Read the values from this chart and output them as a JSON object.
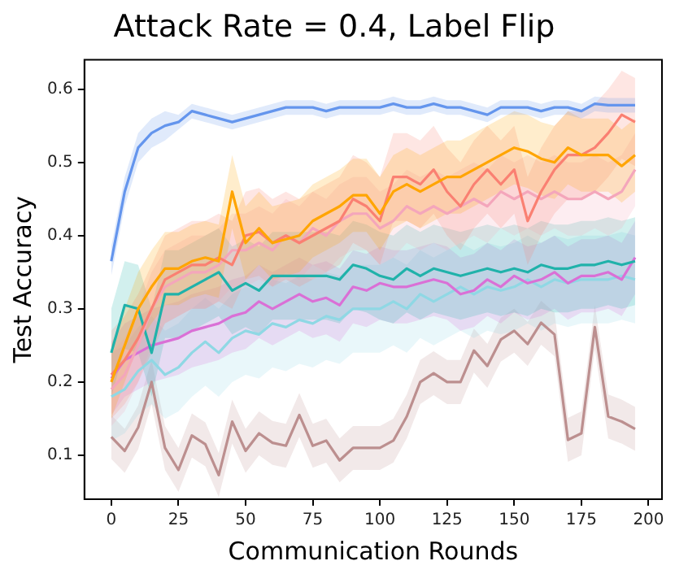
{
  "chart_data": {
    "type": "line",
    "title": "Attack Rate = 0.4, Label Flip",
    "xlabel": "Communication Rounds",
    "ylabel": "Test Accuracy",
    "x": [
      0,
      5,
      10,
      15,
      20,
      25,
      30,
      35,
      40,
      45,
      50,
      55,
      60,
      65,
      70,
      75,
      80,
      85,
      90,
      95,
      100,
      105,
      110,
      115,
      120,
      125,
      130,
      135,
      140,
      145,
      150,
      155,
      160,
      165,
      170,
      175,
      180,
      185,
      190,
      195
    ],
    "xlim": [
      -10,
      205
    ],
    "xticks": [
      0,
      25,
      50,
      75,
      100,
      125,
      150,
      175,
      200
    ],
    "ylim": [
      0.04,
      0.64
    ],
    "yticks": [
      0.1,
      0.2,
      0.3,
      0.4,
      0.5,
      0.6
    ],
    "grid": false,
    "legend": false,
    "marker": "none",
    "line_style": "solid",
    "series": [
      {
        "color": "#6495ed",
        "values": [
          0.365,
          0.46,
          0.52,
          0.54,
          0.55,
          0.555,
          0.57,
          0.565,
          0.56,
          0.555,
          0.56,
          0.565,
          0.57,
          0.575,
          0.575,
          0.575,
          0.57,
          0.575,
          0.575,
          0.575,
          0.575,
          0.58,
          0.575,
          0.575,
          0.58,
          0.575,
          0.575,
          0.57,
          0.565,
          0.575,
          0.575,
          0.575,
          0.57,
          0.575,
          0.575,
          0.57,
          0.58,
          0.578,
          0.578,
          0.578
        ],
        "lower": [
          0.345,
          0.44,
          0.5,
          0.52,
          0.53,
          0.545,
          0.56,
          0.555,
          0.55,
          0.545,
          0.55,
          0.555,
          0.56,
          0.565,
          0.565,
          0.565,
          0.56,
          0.565,
          0.565,
          0.565,
          0.565,
          0.57,
          0.565,
          0.565,
          0.57,
          0.565,
          0.565,
          0.56,
          0.555,
          0.565,
          0.565,
          0.565,
          0.56,
          0.565,
          0.565,
          0.56,
          0.57,
          0.568,
          0.568,
          0.568
        ],
        "upper": [
          0.385,
          0.48,
          0.54,
          0.56,
          0.57,
          0.565,
          0.58,
          0.575,
          0.57,
          0.565,
          0.57,
          0.575,
          0.58,
          0.585,
          0.585,
          0.585,
          0.58,
          0.585,
          0.585,
          0.585,
          0.585,
          0.59,
          0.585,
          0.585,
          0.59,
          0.585,
          0.585,
          0.58,
          0.575,
          0.585,
          0.585,
          0.585,
          0.58,
          0.585,
          0.585,
          0.58,
          0.59,
          0.588,
          0.588,
          0.588
        ]
      },
      {
        "color": "#ffa500",
        "values": [
          0.2,
          0.25,
          0.3,
          0.33,
          0.355,
          0.355,
          0.365,
          0.37,
          0.365,
          0.46,
          0.39,
          0.41,
          0.39,
          0.395,
          0.4,
          0.42,
          0.43,
          0.44,
          0.455,
          0.455,
          0.43,
          0.46,
          0.47,
          0.46,
          0.47,
          0.48,
          0.48,
          0.49,
          0.5,
          0.51,
          0.52,
          0.515,
          0.505,
          0.5,
          0.52,
          0.51,
          0.51,
          0.51,
          0.495,
          0.51
        ],
        "lower": [
          0.15,
          0.2,
          0.25,
          0.28,
          0.305,
          0.305,
          0.315,
          0.32,
          0.315,
          0.41,
          0.34,
          0.36,
          0.34,
          0.345,
          0.35,
          0.37,
          0.38,
          0.39,
          0.405,
          0.405,
          0.38,
          0.41,
          0.42,
          0.41,
          0.42,
          0.43,
          0.43,
          0.44,
          0.45,
          0.46,
          0.47,
          0.465,
          0.455,
          0.45,
          0.47,
          0.46,
          0.46,
          0.46,
          0.445,
          0.46
        ],
        "upper": [
          0.25,
          0.3,
          0.35,
          0.38,
          0.405,
          0.405,
          0.415,
          0.42,
          0.415,
          0.51,
          0.44,
          0.46,
          0.44,
          0.445,
          0.45,
          0.47,
          0.48,
          0.49,
          0.505,
          0.505,
          0.48,
          0.51,
          0.52,
          0.51,
          0.52,
          0.53,
          0.53,
          0.54,
          0.55,
          0.56,
          0.57,
          0.565,
          0.555,
          0.55,
          0.57,
          0.56,
          0.56,
          0.56,
          0.545,
          0.56
        ]
      },
      {
        "color": "#fa8072",
        "values": [
          0.21,
          0.23,
          0.26,
          0.3,
          0.34,
          0.35,
          0.36,
          0.36,
          0.37,
          0.36,
          0.4,
          0.405,
          0.39,
          0.4,
          0.39,
          0.4,
          0.41,
          0.42,
          0.45,
          0.44,
          0.42,
          0.48,
          0.48,
          0.47,
          0.49,
          0.46,
          0.44,
          0.47,
          0.49,
          0.47,
          0.49,
          0.42,
          0.46,
          0.49,
          0.51,
          0.51,
          0.52,
          0.54,
          0.565,
          0.555
        ],
        "lower": [
          0.15,
          0.17,
          0.2,
          0.24,
          0.28,
          0.29,
          0.3,
          0.3,
          0.31,
          0.3,
          0.34,
          0.345,
          0.33,
          0.34,
          0.33,
          0.34,
          0.35,
          0.36,
          0.39,
          0.38,
          0.36,
          0.42,
          0.42,
          0.41,
          0.43,
          0.4,
          0.38,
          0.41,
          0.43,
          0.41,
          0.43,
          0.36,
          0.4,
          0.43,
          0.45,
          0.45,
          0.46,
          0.48,
          0.505,
          0.495
        ],
        "upper": [
          0.27,
          0.29,
          0.32,
          0.36,
          0.4,
          0.41,
          0.42,
          0.42,
          0.43,
          0.42,
          0.46,
          0.465,
          0.45,
          0.46,
          0.45,
          0.46,
          0.47,
          0.48,
          0.51,
          0.5,
          0.48,
          0.54,
          0.54,
          0.53,
          0.55,
          0.52,
          0.5,
          0.53,
          0.55,
          0.53,
          0.55,
          0.48,
          0.52,
          0.55,
          0.57,
          0.57,
          0.58,
          0.6,
          0.625,
          0.615
        ]
      },
      {
        "color": "#f4a6bb",
        "values": [
          0.19,
          0.21,
          0.25,
          0.3,
          0.33,
          0.34,
          0.35,
          0.35,
          0.36,
          0.38,
          0.38,
          0.39,
          0.38,
          0.4,
          0.39,
          0.41,
          0.4,
          0.42,
          0.43,
          0.43,
          0.41,
          0.42,
          0.44,
          0.43,
          0.44,
          0.43,
          0.44,
          0.45,
          0.44,
          0.46,
          0.45,
          0.46,
          0.45,
          0.46,
          0.45,
          0.45,
          0.46,
          0.45,
          0.46,
          0.49
        ],
        "lower": [
          0.14,
          0.16,
          0.2,
          0.25,
          0.28,
          0.29,
          0.3,
          0.3,
          0.31,
          0.33,
          0.33,
          0.34,
          0.33,
          0.35,
          0.34,
          0.36,
          0.35,
          0.37,
          0.38,
          0.38,
          0.36,
          0.37,
          0.39,
          0.38,
          0.39,
          0.38,
          0.39,
          0.4,
          0.39,
          0.41,
          0.4,
          0.41,
          0.4,
          0.41,
          0.4,
          0.4,
          0.41,
          0.4,
          0.41,
          0.44
        ],
        "upper": [
          0.24,
          0.26,
          0.3,
          0.35,
          0.38,
          0.39,
          0.4,
          0.4,
          0.41,
          0.43,
          0.43,
          0.44,
          0.43,
          0.45,
          0.44,
          0.46,
          0.45,
          0.47,
          0.48,
          0.48,
          0.46,
          0.47,
          0.49,
          0.48,
          0.49,
          0.48,
          0.49,
          0.5,
          0.49,
          0.51,
          0.5,
          0.51,
          0.5,
          0.51,
          0.5,
          0.5,
          0.51,
          0.5,
          0.51,
          0.54
        ]
      },
      {
        "color": "#20b2aa",
        "values": [
          0.24,
          0.305,
          0.3,
          0.24,
          0.32,
          0.32,
          0.33,
          0.34,
          0.35,
          0.325,
          0.335,
          0.325,
          0.345,
          0.345,
          0.345,
          0.345,
          0.345,
          0.34,
          0.36,
          0.355,
          0.345,
          0.34,
          0.355,
          0.345,
          0.355,
          0.35,
          0.345,
          0.35,
          0.355,
          0.35,
          0.355,
          0.35,
          0.36,
          0.355,
          0.355,
          0.36,
          0.36,
          0.365,
          0.36,
          0.365
        ],
        "lower": [
          0.18,
          0.245,
          0.24,
          0.18,
          0.26,
          0.26,
          0.27,
          0.28,
          0.29,
          0.265,
          0.275,
          0.265,
          0.285,
          0.285,
          0.285,
          0.285,
          0.285,
          0.28,
          0.3,
          0.295,
          0.285,
          0.28,
          0.295,
          0.285,
          0.295,
          0.29,
          0.285,
          0.29,
          0.295,
          0.29,
          0.295,
          0.29,
          0.3,
          0.295,
          0.295,
          0.3,
          0.3,
          0.305,
          0.3,
          0.305
        ],
        "upper": [
          0.3,
          0.365,
          0.36,
          0.3,
          0.38,
          0.38,
          0.39,
          0.4,
          0.41,
          0.385,
          0.395,
          0.385,
          0.405,
          0.405,
          0.405,
          0.405,
          0.405,
          0.4,
          0.42,
          0.415,
          0.405,
          0.4,
          0.415,
          0.405,
          0.415,
          0.41,
          0.405,
          0.41,
          0.415,
          0.41,
          0.415,
          0.41,
          0.42,
          0.415,
          0.415,
          0.42,
          0.42,
          0.425,
          0.42,
          0.425
        ]
      },
      {
        "color": "#da70d6",
        "values": [
          0.205,
          0.23,
          0.24,
          0.25,
          0.255,
          0.26,
          0.27,
          0.275,
          0.28,
          0.29,
          0.295,
          0.31,
          0.3,
          0.31,
          0.32,
          0.31,
          0.315,
          0.305,
          0.33,
          0.325,
          0.335,
          0.33,
          0.33,
          0.335,
          0.34,
          0.335,
          0.32,
          0.325,
          0.34,
          0.33,
          0.345,
          0.335,
          0.34,
          0.35,
          0.335,
          0.345,
          0.345,
          0.35,
          0.34,
          0.37
        ],
        "lower": [
          0.155,
          0.18,
          0.19,
          0.2,
          0.205,
          0.21,
          0.22,
          0.225,
          0.23,
          0.24,
          0.245,
          0.26,
          0.25,
          0.26,
          0.27,
          0.26,
          0.265,
          0.255,
          0.28,
          0.275,
          0.285,
          0.28,
          0.28,
          0.285,
          0.29,
          0.285,
          0.27,
          0.275,
          0.29,
          0.28,
          0.295,
          0.285,
          0.29,
          0.3,
          0.285,
          0.295,
          0.295,
          0.3,
          0.29,
          0.32
        ],
        "upper": [
          0.255,
          0.28,
          0.29,
          0.3,
          0.305,
          0.31,
          0.32,
          0.325,
          0.33,
          0.34,
          0.345,
          0.36,
          0.35,
          0.36,
          0.37,
          0.36,
          0.365,
          0.355,
          0.38,
          0.375,
          0.385,
          0.38,
          0.38,
          0.385,
          0.39,
          0.385,
          0.37,
          0.375,
          0.39,
          0.38,
          0.395,
          0.385,
          0.39,
          0.4,
          0.385,
          0.395,
          0.395,
          0.4,
          0.39,
          0.42
        ]
      },
      {
        "color": "#8fd8e4",
        "values": [
          0.18,
          0.19,
          0.215,
          0.23,
          0.21,
          0.22,
          0.24,
          0.255,
          0.24,
          0.26,
          0.27,
          0.265,
          0.28,
          0.275,
          0.285,
          0.28,
          0.29,
          0.285,
          0.3,
          0.3,
          0.3,
          0.31,
          0.3,
          0.32,
          0.31,
          0.32,
          0.33,
          0.32,
          0.33,
          0.325,
          0.33,
          0.34,
          0.33,
          0.34,
          0.335,
          0.34,
          0.34,
          0.34,
          0.345,
          0.34
        ],
        "lower": [
          0.12,
          0.13,
          0.155,
          0.17,
          0.15,
          0.16,
          0.18,
          0.195,
          0.18,
          0.2,
          0.21,
          0.205,
          0.22,
          0.215,
          0.225,
          0.22,
          0.23,
          0.225,
          0.24,
          0.24,
          0.24,
          0.25,
          0.24,
          0.26,
          0.25,
          0.26,
          0.27,
          0.26,
          0.27,
          0.265,
          0.27,
          0.28,
          0.27,
          0.28,
          0.275,
          0.28,
          0.28,
          0.28,
          0.285,
          0.28
        ],
        "upper": [
          0.24,
          0.25,
          0.275,
          0.29,
          0.27,
          0.28,
          0.3,
          0.315,
          0.3,
          0.32,
          0.33,
          0.325,
          0.34,
          0.335,
          0.345,
          0.34,
          0.35,
          0.345,
          0.36,
          0.36,
          0.36,
          0.37,
          0.36,
          0.38,
          0.37,
          0.38,
          0.39,
          0.38,
          0.39,
          0.385,
          0.39,
          0.4,
          0.39,
          0.4,
          0.395,
          0.4,
          0.4,
          0.4,
          0.405,
          0.4
        ]
      },
      {
        "color": "#bc8f8f",
        "values": [
          0.125,
          0.106,
          0.138,
          0.2,
          0.11,
          0.08,
          0.127,
          0.115,
          0.073,
          0.146,
          0.106,
          0.13,
          0.117,
          0.113,
          0.155,
          0.113,
          0.12,
          0.093,
          0.11,
          0.11,
          0.11,
          0.12,
          0.153,
          0.2,
          0.212,
          0.2,
          0.2,
          0.243,
          0.222,
          0.258,
          0.27,
          0.252,
          0.281,
          0.265,
          0.121,
          0.13,
          0.275,
          0.153,
          0.146,
          0.136
        ],
        "lower": [
          0.095,
          0.076,
          0.108,
          0.17,
          0.08,
          0.05,
          0.097,
          0.085,
          0.043,
          0.116,
          0.076,
          0.1,
          0.087,
          0.083,
          0.125,
          0.083,
          0.09,
          0.063,
          0.08,
          0.08,
          0.08,
          0.09,
          0.123,
          0.17,
          0.182,
          0.17,
          0.17,
          0.213,
          0.192,
          0.228,
          0.24,
          0.222,
          0.251,
          0.235,
          0.091,
          0.1,
          0.245,
          0.123,
          0.116,
          0.106
        ],
        "upper": [
          0.155,
          0.136,
          0.168,
          0.23,
          0.14,
          0.11,
          0.157,
          0.145,
          0.103,
          0.176,
          0.136,
          0.16,
          0.147,
          0.143,
          0.185,
          0.143,
          0.15,
          0.123,
          0.14,
          0.14,
          0.14,
          0.15,
          0.183,
          0.23,
          0.242,
          0.23,
          0.23,
          0.273,
          0.252,
          0.288,
          0.3,
          0.282,
          0.311,
          0.295,
          0.151,
          0.16,
          0.305,
          0.183,
          0.176,
          0.166
        ]
      }
    ]
  }
}
